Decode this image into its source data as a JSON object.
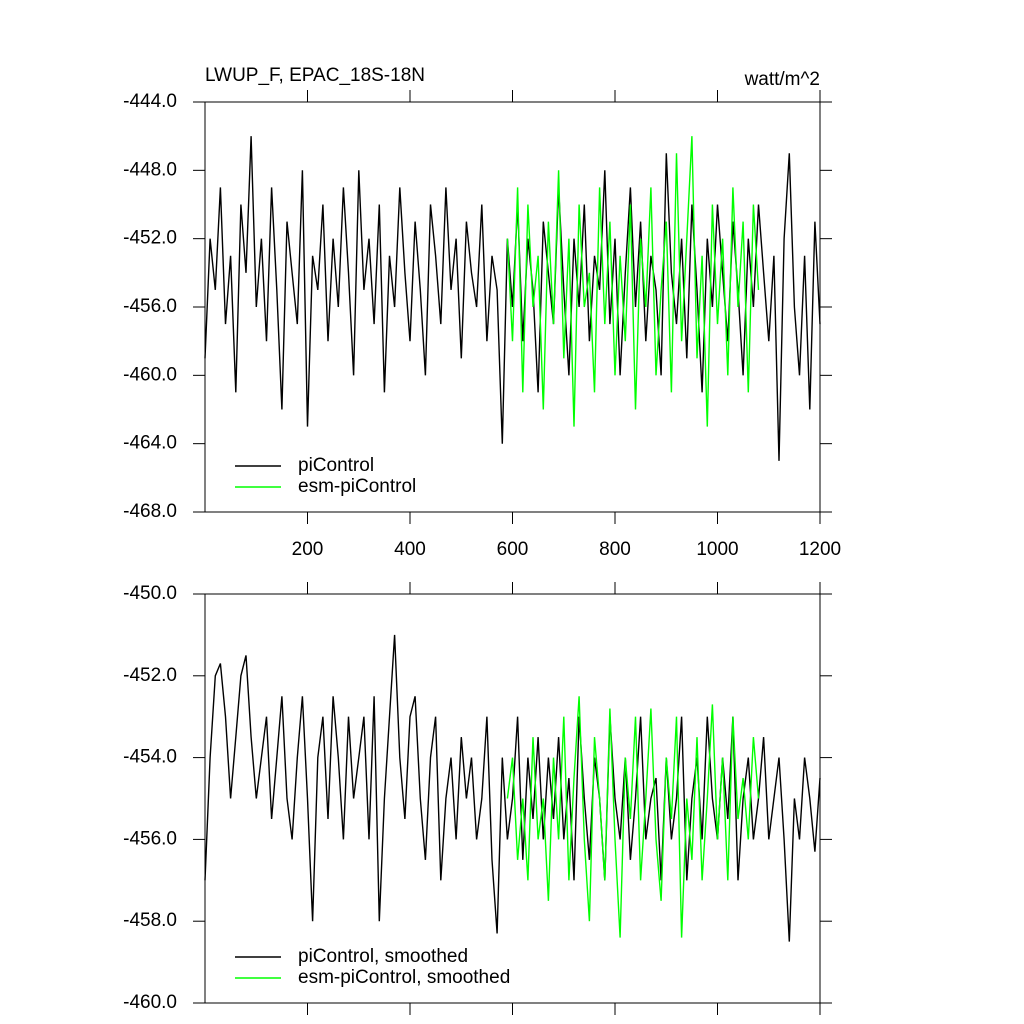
{
  "chart_data": [
    {
      "type": "line",
      "title": "LWUP_F, EPAC_18S-18N",
      "units": "watt/m^2",
      "xlim": [
        0,
        1200
      ],
      "xticks": [
        200,
        400,
        600,
        800,
        1000,
        1200
      ],
      "ylim": [
        -468,
        -444
      ],
      "yticks": [
        {
          "value": -468,
          "label": "-468.0"
        },
        {
          "value": -464,
          "label": "-464.0"
        },
        {
          "value": -460,
          "label": "-460.0"
        },
        {
          "value": -456,
          "label": "-456.0"
        },
        {
          "value": -452,
          "label": "-452.0"
        },
        {
          "value": -448,
          "label": "-448.0"
        },
        {
          "value": -444,
          "label": "-444.0"
        }
      ],
      "legend": "lower left",
      "series": [
        {
          "name": "piControl",
          "color": "#000000",
          "x": [
            0,
            10,
            20,
            30,
            40,
            50,
            60,
            70,
            80,
            90,
            100,
            110,
            120,
            130,
            140,
            150,
            160,
            170,
            180,
            190,
            200,
            210,
            220,
            230,
            240,
            250,
            260,
            270,
            280,
            290,
            300,
            310,
            320,
            330,
            340,
            350,
            360,
            370,
            380,
            390,
            400,
            410,
            420,
            430,
            440,
            450,
            460,
            470,
            480,
            490,
            500,
            510,
            520,
            530,
            540,
            550,
            560,
            570,
            580,
            590,
            600,
            610,
            620,
            630,
            640,
            650,
            660,
            670,
            680,
            690,
            700,
            710,
            720,
            730,
            740,
            750,
            760,
            770,
            780,
            790,
            800,
            810,
            820,
            830,
            840,
            850,
            860,
            870,
            880,
            890,
            900,
            910,
            920,
            930,
            940,
            950,
            960,
            970,
            980,
            990,
            1000,
            1010,
            1020,
            1030,
            1040,
            1050,
            1060,
            1070,
            1080,
            1090,
            1100,
            1110,
            1120,
            1130,
            1140,
            1150,
            1160,
            1170,
            1180,
            1190,
            1200
          ],
          "values": [
            -459,
            -452,
            -455,
            -449,
            -457,
            -453,
            -461,
            -450,
            -454,
            -446,
            -456,
            -452,
            -458,
            -449,
            -455,
            -462,
            -451,
            -454,
            -457,
            -448,
            -463,
            -453,
            -455,
            -450,
            -458,
            -452,
            -456,
            -449,
            -454,
            -460,
            -448,
            -455,
            -452,
            -457,
            -450,
            -461,
            -453,
            -456,
            -449,
            -454,
            -458,
            -451,
            -455,
            -460,
            -450,
            -453,
            -457,
            -449,
            -455,
            -452,
            -459,
            -451,
            -454,
            -456,
            -450,
            -458,
            -453,
            -455,
            -464,
            -452,
            -456,
            -450,
            -458,
            -452,
            -455,
            -461,
            -451,
            -454,
            -457,
            -449,
            -455,
            -460,
            -452,
            -456,
            -450,
            -458,
            -453,
            -455,
            -448,
            -457,
            -452,
            -460,
            -454,
            -449,
            -456,
            -451,
            -458,
            -453,
            -455,
            -460,
            -447,
            -454,
            -457,
            -452,
            -459,
            -450,
            -455,
            -461,
            -452,
            -456,
            -450,
            -454,
            -458,
            -451,
            -455,
            -460,
            -452,
            -456,
            -450,
            -454,
            -458,
            -453,
            -465,
            -452,
            -447,
            -456,
            -460,
            -453,
            -462,
            -451,
            -457
          ]
        },
        {
          "name": "esm-piControl",
          "color": "#00ff00",
          "x": [
            590,
            600,
            610,
            620,
            630,
            640,
            650,
            660,
            670,
            680,
            690,
            700,
            710,
            720,
            730,
            740,
            750,
            760,
            770,
            780,
            790,
            800,
            810,
            820,
            830,
            840,
            850,
            860,
            870,
            880,
            890,
            900,
            910,
            920,
            930,
            940,
            950,
            960,
            970,
            980,
            990,
            1000,
            1010,
            1020,
            1030,
            1040,
            1050,
            1060,
            1070,
            1080
          ],
          "values": [
            -452,
            -458,
            -449,
            -461,
            -450,
            -456,
            -453,
            -462,
            -451,
            -457,
            -448,
            -459,
            -452,
            -463,
            -450,
            -456,
            -454,
            -461,
            -449,
            -457,
            -451,
            -460,
            -453,
            -458,
            -450,
            -462,
            -452,
            -456,
            -449,
            -460,
            -455,
            -451,
            -461,
            -447,
            -458,
            -452,
            -446,
            -459,
            -453,
            -463,
            -450,
            -457,
            -452,
            -460,
            -449,
            -456,
            -451,
            -461,
            -450,
            -455
          ]
        }
      ]
    },
    {
      "type": "line",
      "xlim": [
        0,
        1200
      ],
      "xticks": [
        200,
        400,
        600,
        800,
        1000,
        1200
      ],
      "ylim": [
        -460,
        -450
      ],
      "yticks": [
        {
          "value": -460,
          "label": "-460.0"
        },
        {
          "value": -458,
          "label": "-458.0"
        },
        {
          "value": -456,
          "label": "-456.0"
        },
        {
          "value": -454,
          "label": "-454.0"
        },
        {
          "value": -452,
          "label": "-452.0"
        },
        {
          "value": -450,
          "label": "-450.0"
        }
      ],
      "legend": "lower left",
      "series": [
        {
          "name": "piControl, smoothed",
          "color": "#000000",
          "x": [
            0,
            10,
            20,
            30,
            40,
            50,
            60,
            70,
            80,
            90,
            100,
            110,
            120,
            130,
            140,
            150,
            160,
            170,
            180,
            190,
            200,
            210,
            220,
            230,
            240,
            250,
            260,
            270,
            280,
            290,
            300,
            310,
            320,
            330,
            340,
            350,
            360,
            370,
            380,
            390,
            400,
            410,
            420,
            430,
            440,
            450,
            460,
            470,
            480,
            490,
            500,
            510,
            520,
            530,
            540,
            550,
            560,
            570,
            580,
            590,
            600,
            610,
            620,
            630,
            640,
            650,
            660,
            670,
            680,
            690,
            700,
            710,
            720,
            730,
            740,
            750,
            760,
            770,
            780,
            790,
            800,
            810,
            820,
            830,
            840,
            850,
            860,
            870,
            880,
            890,
            900,
            910,
            920,
            930,
            940,
            950,
            960,
            970,
            980,
            990,
            1000,
            1010,
            1020,
            1030,
            1040,
            1050,
            1060,
            1070,
            1080,
            1090,
            1100,
            1110,
            1120,
            1130,
            1140,
            1150,
            1160,
            1170,
            1180,
            1190,
            1200
          ],
          "values": [
            -457,
            -454,
            -452,
            -451.7,
            -453,
            -455,
            -453.5,
            -452,
            -451.5,
            -453.5,
            -455,
            -454,
            -453,
            -455.5,
            -454,
            -452.5,
            -455,
            -456,
            -454,
            -452.5,
            -455,
            -458,
            -454,
            -453,
            -455.5,
            -452.5,
            -454,
            -456,
            -453,
            -455,
            -454,
            -453,
            -456,
            -452.5,
            -458,
            -455,
            -453,
            -451,
            -454,
            -455.5,
            -453,
            -452.5,
            -455,
            -456.5,
            -454,
            -453,
            -457,
            -455,
            -454,
            -456,
            -453.5,
            -455,
            -454,
            -456,
            -455,
            -453,
            -456.5,
            -458.3,
            -454,
            -456,
            -455,
            -453,
            -456.5,
            -454,
            -455.5,
            -453.5,
            -456,
            -454,
            -455.5,
            -453.5,
            -456,
            -454.5,
            -457,
            -453,
            -455,
            -456.5,
            -454,
            -455,
            -457,
            -453,
            -455,
            -456,
            -454,
            -456.5,
            -455,
            -453,
            -456,
            -455,
            -454.5,
            -457,
            -454,
            -456,
            -455,
            -453,
            -457,
            -455,
            -454,
            -456,
            -453,
            -455,
            -456,
            -454,
            -455.5,
            -453,
            -457,
            -455,
            -454,
            -456,
            -455,
            -453.5,
            -456,
            -455,
            -454,
            -456,
            -458.5,
            -455,
            -456,
            -454,
            -455,
            -456.3,
            -454.5
          ]
        },
        {
          "name": "esm-piControl, smoothed",
          "color": "#00ff00",
          "x": [
            590,
            600,
            610,
            620,
            630,
            640,
            650,
            660,
            670,
            680,
            690,
            700,
            710,
            720,
            730,
            740,
            750,
            760,
            770,
            780,
            790,
            800,
            810,
            820,
            830,
            840,
            850,
            860,
            870,
            880,
            890,
            900,
            910,
            920,
            930,
            940,
            950,
            960,
            970,
            980,
            990,
            1000,
            1010,
            1020,
            1030,
            1040,
            1050,
            1060,
            1070,
            1080
          ],
          "values": [
            -455,
            -454,
            -456.5,
            -455,
            -457,
            -453.5,
            -456,
            -455,
            -457.5,
            -454,
            -456,
            -453,
            -457,
            -454.5,
            -452.5,
            -456,
            -458,
            -453.5,
            -455,
            -457,
            -452.8,
            -456,
            -458.4,
            -454,
            -455.5,
            -453,
            -457,
            -455,
            -452.8,
            -456,
            -457.5,
            -454,
            -455.5,
            -453,
            -458.4,
            -455,
            -456.5,
            -453.5,
            -457,
            -455,
            -452.7,
            -456,
            -454,
            -457,
            -453,
            -455.5,
            -454.5,
            -456,
            -453.5,
            -455
          ]
        }
      ]
    }
  ]
}
